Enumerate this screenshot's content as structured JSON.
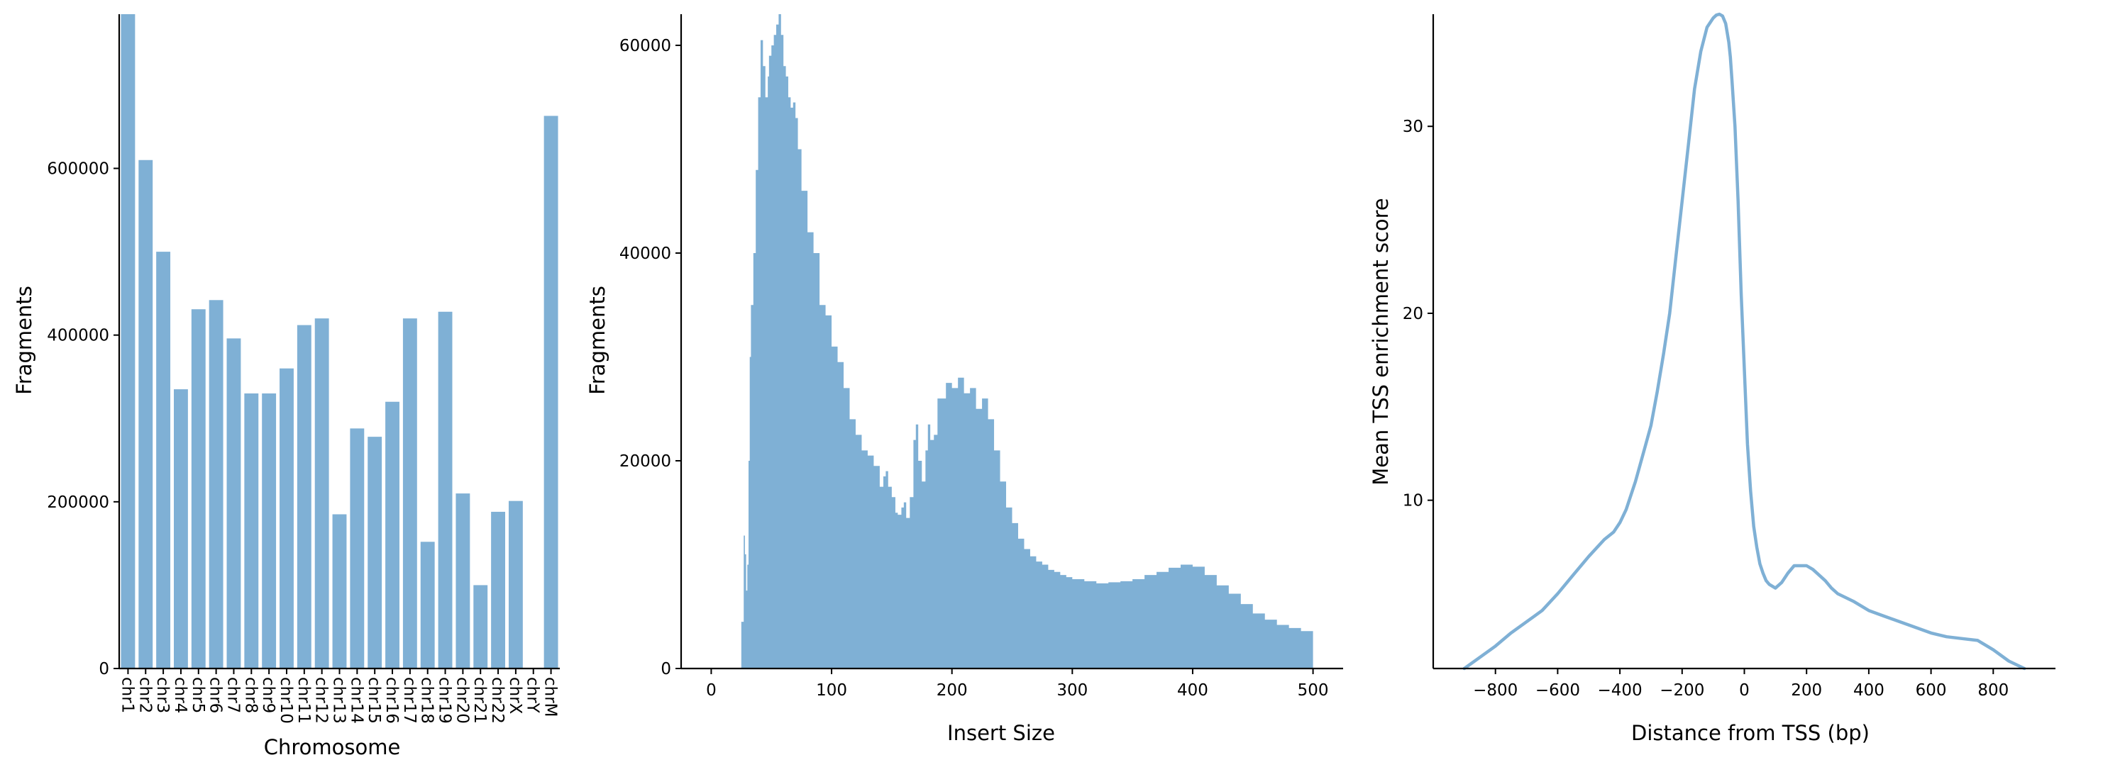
{
  "colors": {
    "bar": "#7fb0d5",
    "line": "#7fb0d5",
    "axis": "#000000"
  },
  "chart_data": [
    {
      "type": "bar",
      "xlabel": "Chromosome",
      "ylabel": "Fragments",
      "categories": [
        "chr1",
        "chr2",
        "chr3",
        "chr4",
        "chr5",
        "chr6",
        "chr7",
        "chr8",
        "chr9",
        "chr10",
        "chr11",
        "chr12",
        "chr13",
        "chr14",
        "chr15",
        "chr16",
        "chr17",
        "chr18",
        "chr19",
        "chr20",
        "chr21",
        "chr22",
        "chrX",
        "chrY",
        "chrM"
      ],
      "values": [
        785000,
        610000,
        500000,
        335000,
        431000,
        442000,
        396000,
        330000,
        330000,
        360000,
        412000,
        420000,
        185000,
        288000,
        278000,
        320000,
        420000,
        152000,
        428000,
        210000,
        100000,
        188000,
        201000,
        0,
        663000
      ],
      "ylim": [
        0,
        785000
      ],
      "yticks": [
        0,
        200000,
        400000,
        600000
      ],
      "ytick_labels": [
        "0",
        "200000",
        "400000",
        "600000"
      ],
      "grid": false
    },
    {
      "type": "bar",
      "xlabel": "Insert Size",
      "ylabel": "Fragments",
      "xlim": [
        -25,
        525
      ],
      "ylim": [
        0,
        63000
      ],
      "xticks": [
        0,
        100,
        200,
        300,
        400,
        500
      ],
      "xtick_labels": [
        "0",
        "100",
        "200",
        "300",
        "400",
        "500"
      ],
      "yticks": [
        0,
        20000,
        40000,
        60000
      ],
      "ytick_labels": [
        "0",
        "20000",
        "40000",
        "60000"
      ],
      "x_range": [
        25,
        500
      ],
      "profile_x": [
        25,
        27,
        28,
        29,
        30,
        31,
        32,
        33,
        35,
        37,
        39,
        41,
        43,
        45,
        47,
        48,
        50,
        52,
        54,
        56,
        58,
        60,
        62,
        64,
        66,
        68,
        70,
        72,
        75,
        80,
        85,
        90,
        95,
        100,
        105,
        110,
        115,
        120,
        125,
        130,
        135,
        140,
        143,
        145,
        147,
        150,
        153,
        155,
        158,
        160,
        162,
        165,
        168,
        170,
        172,
        175,
        178,
        180,
        182,
        185,
        188,
        190,
        195,
        200,
        205,
        210,
        215,
        220,
        225,
        230,
        235,
        240,
        245,
        250,
        255,
        260,
        265,
        270,
        275,
        280,
        285,
        290,
        295,
        300,
        310,
        320,
        330,
        340,
        350,
        360,
        370,
        380,
        390,
        400,
        410,
        420,
        430,
        440,
        450,
        460,
        470,
        480,
        490,
        500
      ],
      "profile_y": [
        4500,
        12800,
        11000,
        7500,
        10000,
        20000,
        30000,
        35000,
        40000,
        48000,
        55000,
        60500,
        58000,
        55000,
        57000,
        59000,
        60000,
        61000,
        62000,
        63000,
        61000,
        58000,
        57000,
        55000,
        54000,
        54500,
        53000,
        50000,
        46000,
        42000,
        40000,
        35000,
        34000,
        31000,
        29500,
        27000,
        24000,
        22500,
        21000,
        20500,
        19500,
        17500,
        18500,
        19000,
        17500,
        16500,
        15000,
        14800,
        15500,
        16000,
        14500,
        16500,
        22000,
        23500,
        20000,
        18000,
        21000,
        23500,
        22000,
        22500,
        26000,
        26000,
        27500,
        27000,
        28000,
        26500,
        27000,
        25000,
        26000,
        24000,
        21000,
        18000,
        15500,
        14000,
        12500,
        11500,
        10800,
        10300,
        10000,
        9500,
        9300,
        9000,
        8800,
        8600,
        8400,
        8200,
        8300,
        8400,
        8600,
        9000,
        9300,
        9700,
        10000,
        9800,
        9000,
        8000,
        7200,
        6200,
        5300,
        4700,
        4200,
        3900,
        3600,
        3400
      ]
    },
    {
      "type": "line",
      "xlabel": "Distance from TSS (bp)",
      "ylabel": "Mean TSS enrichment score",
      "xlim": [
        -1000,
        1000
      ],
      "ylim": [
        1,
        36
      ],
      "xticks": [
        -800,
        -600,
        -400,
        -200,
        0,
        200,
        400,
        600,
        800
      ],
      "xtick_labels": [
        "−800",
        "−600",
        "−400",
        "−200",
        "0",
        "200",
        "400",
        "600",
        "800"
      ],
      "yticks": [
        10,
        20,
        30
      ],
      "ytick_labels": [
        "10",
        "20",
        "30"
      ],
      "x": [
        -900,
        -850,
        -800,
        -750,
        -700,
        -650,
        -600,
        -550,
        -500,
        -450,
        -420,
        -400,
        -380,
        -350,
        -320,
        -300,
        -280,
        -260,
        -240,
        -220,
        -200,
        -180,
        -160,
        -140,
        -120,
        -100,
        -90,
        -80,
        -70,
        -60,
        -50,
        -45,
        -40,
        -30,
        -20,
        -10,
        0,
        10,
        20,
        30,
        40,
        50,
        60,
        70,
        80,
        100,
        120,
        140,
        160,
        180,
        200,
        220,
        240,
        260,
        280,
        300,
        350,
        400,
        450,
        500,
        550,
        600,
        650,
        700,
        750,
        800,
        850,
        900
      ],
      "y": [
        1.0,
        1.6,
        2.2,
        2.9,
        3.5,
        4.1,
        5.0,
        6.0,
        7.0,
        7.9,
        8.3,
        8.8,
        9.5,
        11.0,
        12.8,
        14.0,
        15.8,
        17.8,
        20.0,
        23.0,
        26.0,
        29.0,
        32.0,
        34.0,
        35.3,
        35.8,
        35.95,
        36.0,
        35.9,
        35.5,
        34.5,
        33.7,
        32.5,
        30.0,
        26.0,
        21.0,
        17.0,
        13.0,
        10.5,
        8.6,
        7.5,
        6.6,
        6.1,
        5.7,
        5.5,
        5.3,
        5.6,
        6.1,
        6.5,
        6.5,
        6.5,
        6.3,
        6.0,
        5.7,
        5.3,
        5.0,
        4.6,
        4.1,
        3.8,
        3.5,
        3.2,
        2.9,
        2.7,
        2.6,
        2.5,
        2.0,
        1.4,
        1.0
      ]
    }
  ]
}
